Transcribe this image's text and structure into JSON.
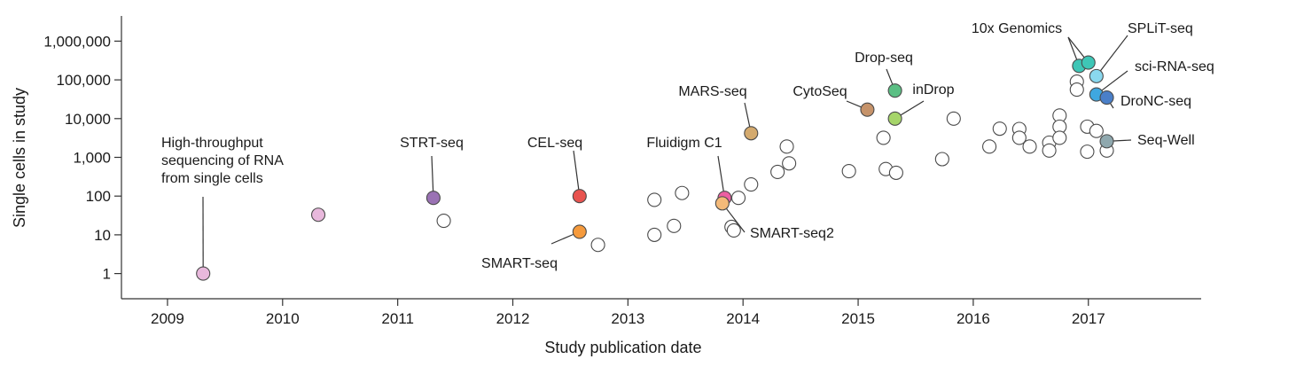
{
  "chart_data": {
    "type": "scatter",
    "title": "",
    "xlabel": "Study publication date",
    "ylabel": "Single cells in study",
    "xlim": [
      2008.6,
      2017.98
    ],
    "ylim_log10": [
      -0.65,
      6.65
    ],
    "y_scale": "log",
    "x_ticks": [
      2009,
      2010,
      2011,
      2012,
      2013,
      2014,
      2015,
      2016,
      2017
    ],
    "x_tick_labels": [
      "2009",
      "2010",
      "2011",
      "2012",
      "2013",
      "2014",
      "2015",
      "2016",
      "2017"
    ],
    "y_ticks": [
      1,
      10,
      100,
      1000,
      10000,
      100000,
      1000000
    ],
    "y_tick_labels": [
      "1",
      "10",
      "100",
      "1,000",
      "10,000",
      "100,000",
      "1,000,000"
    ],
    "highlighted": [
      {
        "label": "High-throughput\nsequencing of RNA\nfrom single cells",
        "x": 2009.31,
        "y": 1,
        "color": "#e8b8dc"
      },
      {
        "label": "",
        "x": 2010.31,
        "y": 33,
        "color": "#e8b8dc"
      },
      {
        "label": "STRT-seq",
        "x": 2011.31,
        "y": 90,
        "color": "#9a72b4"
      },
      {
        "label": "CEL-seq",
        "x": 2012.58,
        "y": 100,
        "color": "#e8534f"
      },
      {
        "label": "SMART-seq",
        "x": 2012.58,
        "y": 12,
        "color": "#f59a3c"
      },
      {
        "label": "Fluidigm C1",
        "x": 2013.84,
        "y": 90,
        "color": "#ec5fa2"
      },
      {
        "label": "SMART-seq2",
        "x": 2013.82,
        "y": 65,
        "color": "#f3b979"
      },
      {
        "label": "MARS-seq",
        "x": 2014.07,
        "y": 4200,
        "color": "#d4aa6e"
      },
      {
        "label": "CytoSeq",
        "x": 2015.08,
        "y": 17000,
        "color": "#c6936a"
      },
      {
        "label": "Drop-seq",
        "x": 2015.32,
        "y": 53000,
        "color": "#5bbf84"
      },
      {
        "label": "inDrop",
        "x": 2015.32,
        "y": 10000,
        "color": "#a6d56a"
      },
      {
        "label": "10x Genomics",
        "x": 2016.92,
        "y": 230000,
        "color": "#3ec6b6"
      },
      {
        "label": "",
        "x": 2017.0,
        "y": 280000,
        "color": "#3ec6b6"
      },
      {
        "label": "SPLiT-seq",
        "x": 2017.07,
        "y": 125000,
        "color": "#8ad8ee"
      },
      {
        "label": "sci-RNA-seq",
        "x": 2017.07,
        "y": 42000,
        "color": "#3fa7e0"
      },
      {
        "label": "DroNC-seq",
        "x": 2017.16,
        "y": 35000,
        "color": "#4a7fc8"
      },
      {
        "label": "Seq-Well",
        "x": 2017.16,
        "y": 2600,
        "color": "#8fa8ae"
      }
    ],
    "other_studies": [
      {
        "x": 2011.4,
        "y": 23
      },
      {
        "x": 2012.74,
        "y": 5.5
      },
      {
        "x": 2013.23,
        "y": 80
      },
      {
        "x": 2013.23,
        "y": 10
      },
      {
        "x": 2013.4,
        "y": 17
      },
      {
        "x": 2013.47,
        "y": 120
      },
      {
        "x": 2013.96,
        "y": 90
      },
      {
        "x": 2014.07,
        "y": 200
      },
      {
        "x": 2013.9,
        "y": 16
      },
      {
        "x": 2013.92,
        "y": 13
      },
      {
        "x": 2014.3,
        "y": 420
      },
      {
        "x": 2014.38,
        "y": 1900
      },
      {
        "x": 2014.4,
        "y": 700
      },
      {
        "x": 2014.92,
        "y": 440
      },
      {
        "x": 2015.22,
        "y": 3200
      },
      {
        "x": 2015.24,
        "y": 500
      },
      {
        "x": 2015.33,
        "y": 400
      },
      {
        "x": 2015.73,
        "y": 900
      },
      {
        "x": 2015.83,
        "y": 10000
      },
      {
        "x": 2016.14,
        "y": 1900
      },
      {
        "x": 2016.23,
        "y": 5500
      },
      {
        "x": 2016.4,
        "y": 5400
      },
      {
        "x": 2016.4,
        "y": 3200
      },
      {
        "x": 2016.49,
        "y": 1900
      },
      {
        "x": 2016.66,
        "y": 2400
      },
      {
        "x": 2016.66,
        "y": 1500
      },
      {
        "x": 2016.75,
        "y": 12000
      },
      {
        "x": 2016.75,
        "y": 6200
      },
      {
        "x": 2016.75,
        "y": 3200
      },
      {
        "x": 2016.9,
        "y": 90000
      },
      {
        "x": 2016.9,
        "y": 56000
      },
      {
        "x": 2016.99,
        "y": 6200
      },
      {
        "x": 2016.99,
        "y": 1400
      },
      {
        "x": 2017.07,
        "y": 4800
      },
      {
        "x": 2017.16,
        "y": 1500
      }
    ],
    "grid": false,
    "legend": "none"
  }
}
